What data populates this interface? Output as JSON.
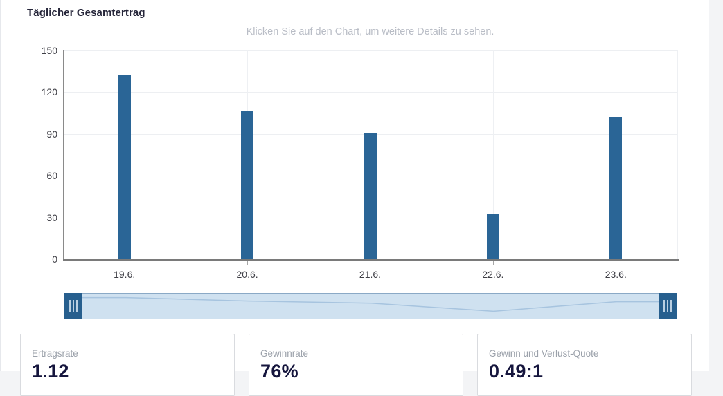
{
  "header": {
    "title": "Täglicher Gesamtertrag",
    "subtitle": "Klicken Sie auf den Chart, um weitere Details zu sehen."
  },
  "chart_data": {
    "type": "bar",
    "categories": [
      "19.6.",
      "20.6.",
      "21.6.",
      "22.6.",
      "23.6."
    ],
    "values": [
      132,
      107,
      91,
      33,
      102
    ],
    "title": "Täglicher Gesamtertrag",
    "xlabel": "",
    "ylabel": "",
    "ylim": [
      0,
      150
    ],
    "yticks": [
      0,
      30,
      60,
      90,
      120,
      150
    ],
    "grid": true,
    "legend": "none",
    "bar_color": "#2a6596"
  },
  "navigator": {
    "mask_color": "#cfe1f0",
    "handle_color": "#275f8e",
    "line_color": "#a7c4df"
  },
  "stats": [
    {
      "label": "Ertragsrate",
      "value": "1.12"
    },
    {
      "label": "Gewinnrate",
      "value": "76%"
    },
    {
      "label": "Gewinn und Verlust-Quote",
      "value": "0.49:1"
    }
  ]
}
